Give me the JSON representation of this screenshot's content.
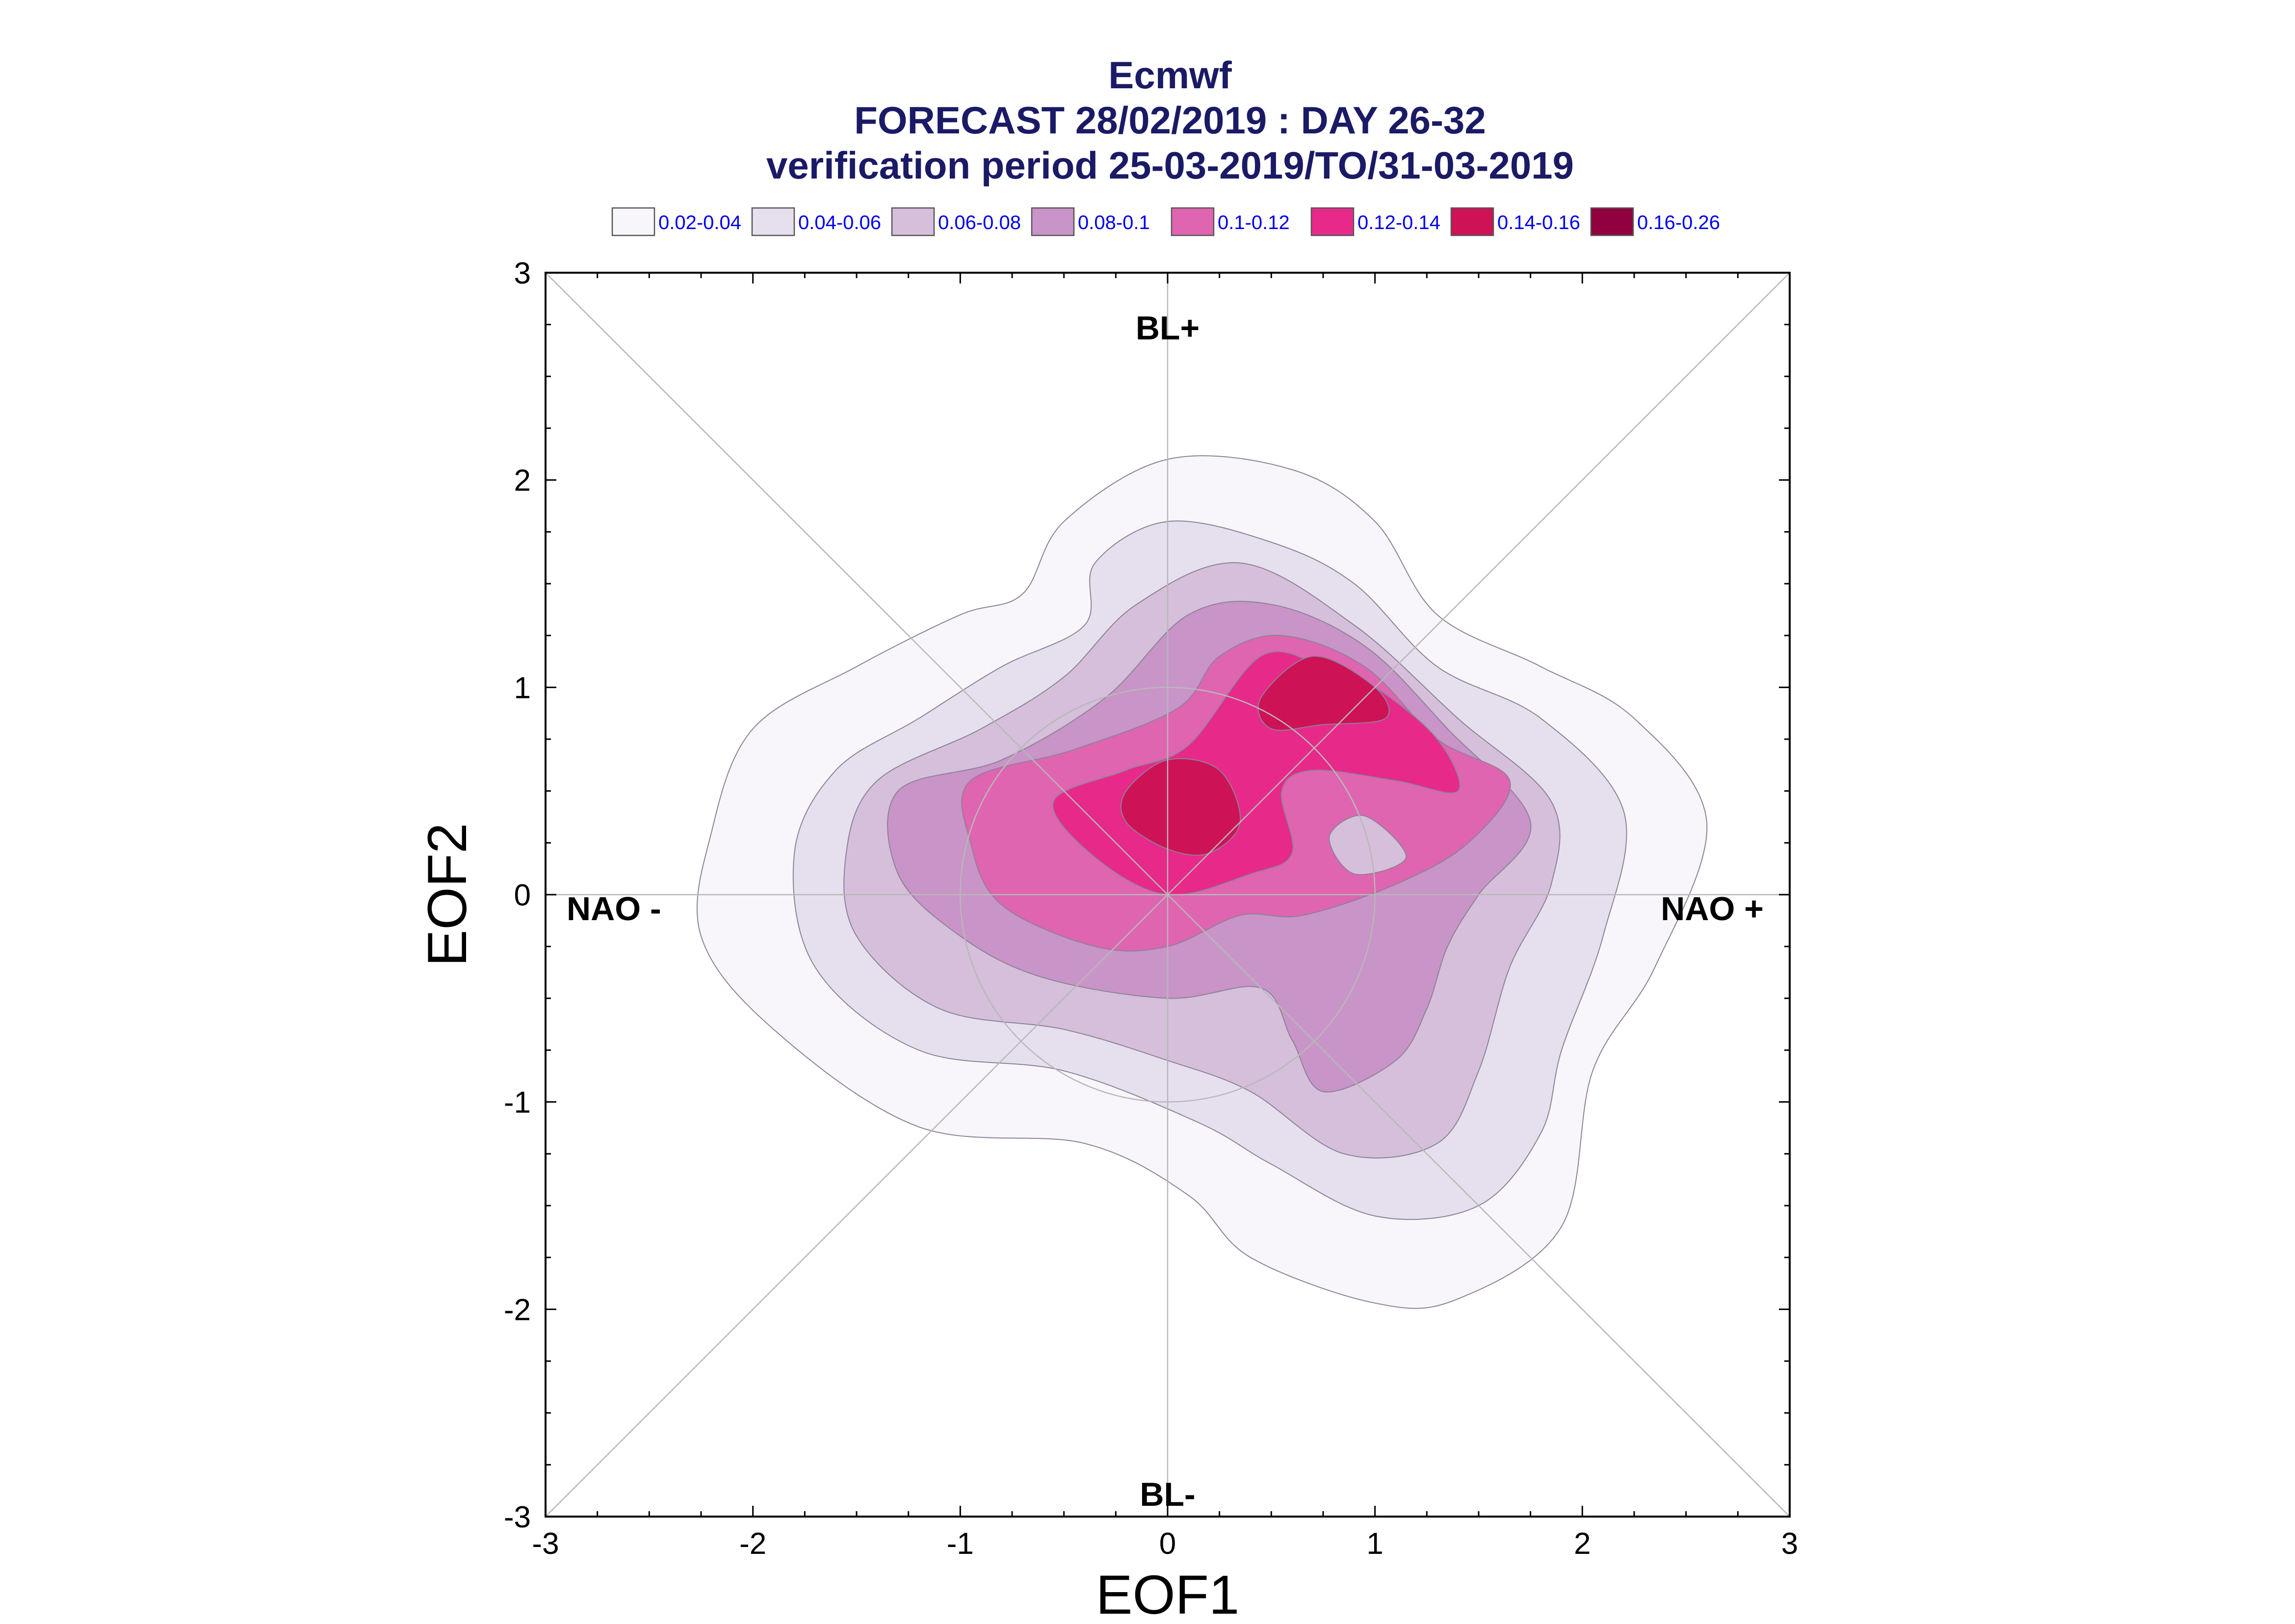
{
  "titles": {
    "line1": "Ecmwf",
    "line2": "FORECAST 28/02/2019 : DAY 26-32",
    "line3": "verification period 25-03-2019/TO/31-03-2019"
  },
  "legend": [
    {
      "label": "0.02-0.04",
      "color": "#f8f6fa"
    },
    {
      "label": "0.04-0.06",
      "color": "#e6e0ee"
    },
    {
      "label": "0.06-0.08",
      "color": "#d5bfdb"
    },
    {
      "label": "0.08-0.1",
      "color": "#c994c7"
    },
    {
      "label": "0.1-0.12",
      "color": "#df65b0"
    },
    {
      "label": "0.12-0.14",
      "color": "#e7298a"
    },
    {
      "label": "0.14-0.16",
      "color": "#ce1256"
    },
    {
      "label": "0.16-0.26",
      "color": "#91003f"
    }
  ],
  "regimes": {
    "top": "BL+",
    "bottom": "BL-",
    "left": "NAO -",
    "right": "NAO +"
  },
  "chart_data": {
    "type": "filled-contour",
    "title": "FORECAST 28/02/2019 : DAY 26-32",
    "xlabel": "EOF1",
    "ylabel": "EOF2",
    "xlim": [
      -3,
      3
    ],
    "ylim": [
      -3,
      3
    ],
    "x_ticks": [
      "-3",
      "-2",
      "-1",
      "0",
      "1",
      "2",
      "3"
    ],
    "y_ticks": [
      "-3",
      "-2",
      "-1",
      "0",
      "1",
      "2",
      "3"
    ],
    "reference_circle_radius": 1,
    "levels": [
      {
        "range": "0.02-0.04",
        "color": "#f8f6fa",
        "outline": [
          [
            -1.5,
            1.1
          ],
          [
            -1.0,
            1.35
          ],
          [
            -0.7,
            1.45
          ],
          [
            -0.5,
            1.8
          ],
          [
            0,
            2.1
          ],
          [
            0.6,
            2.05
          ],
          [
            1.0,
            1.8
          ],
          [
            1.3,
            1.35
          ],
          [
            1.8,
            1.1
          ],
          [
            2.25,
            0.85
          ],
          [
            2.6,
            0.35
          ],
          [
            2.35,
            -0.35
          ],
          [
            2.05,
            -0.85
          ],
          [
            1.9,
            -1.6
          ],
          [
            1.4,
            -1.95
          ],
          [
            1.0,
            -1.97
          ],
          [
            0.4,
            -1.75
          ],
          [
            0.1,
            -1.45
          ],
          [
            -0.4,
            -1.2
          ],
          [
            -1.2,
            -1.12
          ],
          [
            -1.9,
            -0.65
          ],
          [
            -2.25,
            -0.2
          ],
          [
            -2.2,
            0.3
          ],
          [
            -2.0,
            0.8
          ],
          [
            -1.5,
            1.1
          ]
        ]
      },
      {
        "range": "0.04-0.06",
        "color": "#e6e0ee",
        "outline": [
          [
            -1.6,
            0.6
          ],
          [
            -1.2,
            0.85
          ],
          [
            -0.8,
            1.1
          ],
          [
            -0.4,
            1.3
          ],
          [
            -0.35,
            1.6
          ],
          [
            0,
            1.8
          ],
          [
            0.5,
            1.7
          ],
          [
            0.9,
            1.5
          ],
          [
            1.3,
            1.1
          ],
          [
            1.8,
            0.85
          ],
          [
            2.2,
            0.4
          ],
          [
            2.1,
            -0.2
          ],
          [
            1.9,
            -0.75
          ],
          [
            1.8,
            -1.15
          ],
          [
            1.5,
            -1.5
          ],
          [
            1.0,
            -1.55
          ],
          [
            0.5,
            -1.3
          ],
          [
            0.15,
            -1.1
          ],
          [
            -0.5,
            -0.85
          ],
          [
            -1.2,
            -0.75
          ],
          [
            -1.7,
            -0.35
          ],
          [
            -1.8,
            0.2
          ],
          [
            -1.6,
            0.6
          ]
        ]
      },
      {
        "range": "0.06-0.08",
        "color": "#d5bfdb",
        "outline": [
          [
            -1.4,
            0.55
          ],
          [
            -0.9,
            0.8
          ],
          [
            -0.5,
            1.05
          ],
          [
            -0.15,
            1.4
          ],
          [
            0.35,
            1.6
          ],
          [
            0.9,
            1.3
          ],
          [
            1.4,
            0.85
          ],
          [
            1.85,
            0.45
          ],
          [
            1.85,
            0.05
          ],
          [
            1.65,
            -0.35
          ],
          [
            1.5,
            -0.85
          ],
          [
            1.3,
            -1.2
          ],
          [
            0.85,
            -1.25
          ],
          [
            0.4,
            -0.95
          ],
          [
            0.0,
            -0.8
          ],
          [
            -0.5,
            -0.65
          ],
          [
            -1.1,
            -0.55
          ],
          [
            -1.5,
            -0.2
          ],
          [
            -1.55,
            0.2
          ],
          [
            -1.4,
            0.55
          ]
        ]
      },
      {
        "range": "0.08-0.1",
        "color": "#c994c7",
        "outline": [
          [
            -1.3,
            0.5
          ],
          [
            -0.8,
            0.65
          ],
          [
            -0.3,
            0.95
          ],
          [
            0.1,
            1.35
          ],
          [
            0.5,
            1.4
          ],
          [
            0.95,
            1.2
          ],
          [
            1.35,
            0.8
          ],
          [
            1.75,
            0.35
          ],
          [
            1.5,
            0.0
          ],
          [
            1.35,
            -0.25
          ],
          [
            1.25,
            -0.55
          ],
          [
            1.1,
            -0.8
          ],
          [
            0.75,
            -0.95
          ],
          [
            0.6,
            -0.7
          ],
          [
            0.45,
            -0.45
          ],
          [
            0.0,
            -0.5
          ],
          [
            -0.6,
            -0.4
          ],
          [
            -1.0,
            -0.2
          ],
          [
            -1.3,
            0.1
          ],
          [
            -1.3,
            0.5
          ]
        ]
      },
      {
        "range": "0.1-0.12",
        "color": "#df65b0",
        "outline": [
          [
            -0.95,
            0.55
          ],
          [
            -0.45,
            0.7
          ],
          [
            0.05,
            0.9
          ],
          [
            0.25,
            1.15
          ],
          [
            0.55,
            1.25
          ],
          [
            0.95,
            1.1
          ],
          [
            1.3,
            0.75
          ],
          [
            1.65,
            0.55
          ],
          [
            1.45,
            0.25
          ],
          [
            1.1,
            0.05
          ],
          [
            0.65,
            -0.1
          ],
          [
            0.35,
            -0.1
          ],
          [
            0.0,
            -0.25
          ],
          [
            -0.35,
            -0.25
          ],
          [
            -0.8,
            -0.05
          ],
          [
            -0.95,
            0.25
          ],
          [
            -0.95,
            0.55
          ]
        ]
      },
      {
        "range": "0.12-0.14",
        "color": "#e7298a",
        "outline": [
          [
            -0.55,
            0.45
          ],
          [
            -0.2,
            0.6
          ],
          [
            0.1,
            0.72
          ],
          [
            0.45,
            1.15
          ],
          [
            0.75,
            1.1
          ],
          [
            1.0,
            1.0
          ],
          [
            1.3,
            0.75
          ],
          [
            1.4,
            0.5
          ],
          [
            1.1,
            0.55
          ],
          [
            0.7,
            0.6
          ],
          [
            0.55,
            0.5
          ],
          [
            0.6,
            0.2
          ],
          [
            0.4,
            0.1
          ],
          [
            0.0,
            0.0
          ],
          [
            -0.35,
            0.18
          ],
          [
            -0.55,
            0.45
          ]
        ]
      },
      {
        "range": "0.14-0.16",
        "color": "#ce1256",
        "outline": [
          [
            -0.2,
            0.5
          ],
          [
            0.0,
            0.65
          ],
          [
            0.25,
            0.6
          ],
          [
            0.35,
            0.35
          ],
          [
            0.2,
            0.2
          ],
          [
            0.0,
            0.22
          ],
          [
            -0.2,
            0.35
          ],
          [
            -0.2,
            0.5
          ]
        ]
      },
      {
        "range": "0.14-0.16",
        "color": "#ce1256",
        "outline": [
          [
            0.45,
            0.95
          ],
          [
            0.7,
            1.15
          ],
          [
            1.0,
            1.0
          ],
          [
            1.05,
            0.85
          ],
          [
            0.75,
            0.82
          ],
          [
            0.5,
            0.8
          ],
          [
            0.45,
            0.95
          ]
        ]
      }
    ],
    "hole": {
      "range": "0.06-0.08",
      "color": "#d5bfdb",
      "outline": [
        [
          0.78,
          0.28
        ],
        [
          0.95,
          0.38
        ],
        [
          1.15,
          0.18
        ],
        [
          0.9,
          0.1
        ],
        [
          0.78,
          0.28
        ]
      ]
    }
  }
}
